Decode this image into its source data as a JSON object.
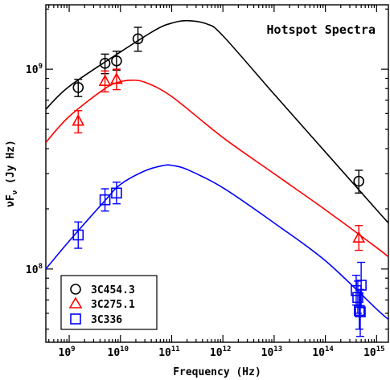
{
  "chart_data": {
    "type": "scatter",
    "title": "Hotspot Spectra",
    "xlabel": "Frequency (Hz)",
    "ylabel_main": "νF",
    "ylabel_sub": "ν",
    "ylabel_unit": " (Jy Hz)",
    "xscale": "log",
    "yscale": "log",
    "xlim": [
      350000000.0,
      1700000000000000.0
    ],
    "ylim": [
      43000000.0,
      2100000000.0
    ],
    "x_ticks": [
      {
        "value": 1000000000.0,
        "base": "10",
        "exp": "9"
      },
      {
        "value": 10000000000.0,
        "base": "10",
        "exp": "10"
      },
      {
        "value": 100000000000.0,
        "base": "10",
        "exp": "11"
      },
      {
        "value": 1000000000000.0,
        "base": "10",
        "exp": "12"
      },
      {
        "value": 10000000000000.0,
        "base": "10",
        "exp": "13"
      },
      {
        "value": 100000000000000.0,
        "base": "10",
        "exp": "14"
      },
      {
        "value": 1000000000000000.0,
        "base": "10",
        "exp": "15"
      }
    ],
    "y_ticks": [
      {
        "value": 100000000.0,
        "base": "10",
        "exp": "8"
      },
      {
        "value": 1000000000.0,
        "base": "10",
        "exp": "9"
      }
    ],
    "legend_position": "bottom-left",
    "series": [
      {
        "name": "3C454.3",
        "color": "#000000",
        "marker": "circle",
        "points": [
          {
            "x": 1500000000.0,
            "y": 810000000.0,
            "lo": 730000000.0,
            "hi": 890000000.0
          },
          {
            "x": 5000000000.0,
            "y": 1070000000.0,
            "lo": 950000000.0,
            "hi": 1190000000.0
          },
          {
            "x": 8400000000.0,
            "y": 1100000000.0,
            "lo": 990000000.0,
            "hi": 1230000000.0
          },
          {
            "x": 22000000000.0,
            "y": 1420000000.0,
            "lo": 1230000000.0,
            "hi": 1620000000.0
          },
          {
            "x": 450000000000000.0,
            "y": 275000000.0,
            "lo": 240000000.0,
            "hi": 312000000.0
          }
        ],
        "model": [
          {
            "x": 350000000.0,
            "y": 630000000.0
          },
          {
            "x": 1000000000.0,
            "y": 820000000.0
          },
          {
            "x": 10000000000.0,
            "y": 1220000000.0
          },
          {
            "x": 50000000000.0,
            "y": 1580000000.0
          },
          {
            "x": 100000000000.0,
            "y": 1700000000.0
          },
          {
            "x": 200000000000.0,
            "y": 1750000000.0
          },
          {
            "x": 500000000000.0,
            "y": 1680000000.0
          },
          {
            "x": 1000000000000.0,
            "y": 1470000000.0
          },
          {
            "x": 10000000000000.0,
            "y": 750000000.0
          },
          {
            "x": 100000000000000.0,
            "y": 385000000.0
          },
          {
            "x": 1000000000000000.0,
            "y": 198000000.0
          },
          {
            "x": 1700000000000000.0,
            "y": 170000000.0
          }
        ]
      },
      {
        "name": "3C275.1",
        "color": "#ff0000",
        "marker": "triangle",
        "points": [
          {
            "x": 1500000000.0,
            "y": 550000000.0,
            "lo": 480000000.0,
            "hi": 620000000.0
          },
          {
            "x": 5000000000.0,
            "y": 870000000.0,
            "lo": 770000000.0,
            "hi": 980000000.0
          },
          {
            "x": 8400000000.0,
            "y": 890000000.0,
            "lo": 790000000.0,
            "hi": 1000000000.0
          },
          {
            "x": 450000000000000.0,
            "y": 143000000.0,
            "lo": 124000000.0,
            "hi": 165000000.0
          }
        ],
        "model": [
          {
            "x": 350000000.0,
            "y": 430000000.0
          },
          {
            "x": 1000000000.0,
            "y": 580000000.0
          },
          {
            "x": 5000000000.0,
            "y": 800000000.0
          },
          {
            "x": 10000000000.0,
            "y": 865000000.0
          },
          {
            "x": 16000000000.0,
            "y": 880000000.0
          },
          {
            "x": 30000000000.0,
            "y": 860000000.0
          },
          {
            "x": 100000000000.0,
            "y": 730000000.0
          },
          {
            "x": 1000000000000.0,
            "y": 455000000.0
          },
          {
            "x": 10000000000000.0,
            "y": 300000000.0
          },
          {
            "x": 100000000000000.0,
            "y": 198000000.0
          },
          {
            "x": 1000000000000000.0,
            "y": 128000000.0
          },
          {
            "x": 1700000000000000.0,
            "y": 115000000.0
          }
        ]
      },
      {
        "name": "3C336",
        "color": "#0000ff",
        "marker": "square",
        "points": [
          {
            "x": 1500000000.0,
            "y": 148000000.0,
            "lo": 127000000.0,
            "hi": 172000000.0
          },
          {
            "x": 5000000000.0,
            "y": 222000000.0,
            "lo": 195000000.0,
            "hi": 252000000.0
          },
          {
            "x": 8400000000.0,
            "y": 240000000.0,
            "lo": 212000000.0,
            "hi": 272000000.0
          },
          {
            "x": 400000000000000.0,
            "y": 78000000.0,
            "lo": 66000000.0,
            "hi": 93000000.0
          },
          {
            "x": 430000000000000.0,
            "y": 72000000.0,
            "lo": 60000000.0,
            "hi": 87000000.0
          },
          {
            "x": 460000000000000.0,
            "y": 62000000.0,
            "lo": 50000000.0,
            "hi": 76000000.0
          },
          {
            "x": 500000000000000.0,
            "y": 83000000.0,
            "lo": 64000000.0,
            "hi": 108000000.0
          },
          {
            "x": 480000000000000.0,
            "y": 61000000.0,
            "lo": 46000000.0,
            "hi": 79000000.0
          }
        ],
        "model": [
          {
            "x": 350000000.0,
            "y": 100000000.0
          },
          {
            "x": 1000000000.0,
            "y": 138000000.0
          },
          {
            "x": 5000000000.0,
            "y": 220000000.0
          },
          {
            "x": 10000000000.0,
            "y": 265000000.0
          },
          {
            "x": 30000000000.0,
            "y": 310000000.0
          },
          {
            "x": 70000000000.0,
            "y": 330000000.0
          },
          {
            "x": 100000000000.0,
            "y": 330000000.0
          },
          {
            "x": 200000000000.0,
            "y": 315000000.0
          },
          {
            "x": 1000000000000.0,
            "y": 255000000.0
          },
          {
            "x": 10000000000000.0,
            "y": 170000000.0
          },
          {
            "x": 100000000000000.0,
            "y": 110000000.0
          },
          {
            "x": 1000000000000000.0,
            "y": 63000000.0
          },
          {
            "x": 1700000000000000.0,
            "y": 56000000.0
          }
        ]
      }
    ]
  }
}
